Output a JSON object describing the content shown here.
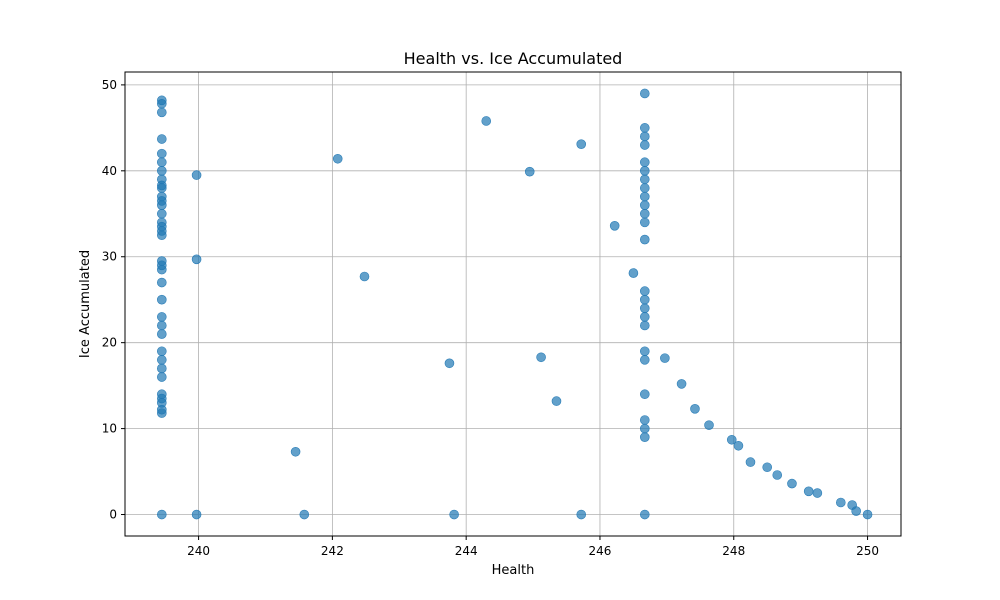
{
  "chart_data": {
    "type": "scatter",
    "title": "Health vs. Ice Accumulated",
    "xlabel": "Health",
    "ylabel": "Ice Accumulated",
    "xlim": [
      238.9,
      250.5
    ],
    "ylim": [
      -2.5,
      51.5
    ],
    "xticks": [
      240,
      242,
      244,
      246,
      248,
      250
    ],
    "yticks": [
      0,
      10,
      20,
      30,
      40,
      50
    ],
    "grid": true,
    "marker_color": "#1f77b4",
    "marker_alpha": 0.7,
    "points": [
      [
        239.45,
        48.2
      ],
      [
        239.45,
        47.8
      ],
      [
        239.45,
        46.8
      ],
      [
        239.45,
        43.7
      ],
      [
        239.45,
        42.0
      ],
      [
        239.45,
        41.0
      ],
      [
        239.45,
        40.0
      ],
      [
        239.45,
        39.0
      ],
      [
        239.45,
        38.3
      ],
      [
        239.45,
        38.0
      ],
      [
        239.45,
        37.0
      ],
      [
        239.45,
        36.5
      ],
      [
        239.45,
        36.0
      ],
      [
        239.45,
        35.0
      ],
      [
        239.45,
        34.0
      ],
      [
        239.45,
        33.5
      ],
      [
        239.45,
        33.0
      ],
      [
        239.45,
        32.5
      ],
      [
        239.45,
        29.5
      ],
      [
        239.45,
        29.0
      ],
      [
        239.45,
        28.5
      ],
      [
        239.45,
        27.0
      ],
      [
        239.45,
        25.0
      ],
      [
        239.45,
        23.0
      ],
      [
        239.45,
        22.0
      ],
      [
        239.45,
        21.0
      ],
      [
        239.45,
        19.0
      ],
      [
        239.45,
        18.0
      ],
      [
        239.45,
        17.0
      ],
      [
        239.45,
        16.0
      ],
      [
        239.45,
        14.0
      ],
      [
        239.45,
        13.5
      ],
      [
        239.45,
        13.0
      ],
      [
        239.45,
        12.2
      ],
      [
        239.45,
        11.8
      ],
      [
        239.45,
        0.0
      ],
      [
        239.97,
        39.5
      ],
      [
        239.97,
        29.7
      ],
      [
        239.97,
        0.0
      ],
      [
        241.45,
        7.3
      ],
      [
        241.58,
        0.0
      ],
      [
        242.08,
        41.4
      ],
      [
        242.48,
        27.7
      ],
      [
        243.75,
        17.6
      ],
      [
        243.82,
        0.0
      ],
      [
        244.3,
        45.8
      ],
      [
        244.95,
        39.9
      ],
      [
        245.12,
        18.3
      ],
      [
        245.35,
        13.2
      ],
      [
        245.72,
        43.1
      ],
      [
        245.72,
        0.0
      ],
      [
        246.22,
        33.6
      ],
      [
        246.5,
        28.1
      ],
      [
        246.67,
        49.0
      ],
      [
        246.67,
        45.0
      ],
      [
        246.67,
        44.0
      ],
      [
        246.67,
        43.0
      ],
      [
        246.67,
        41.0
      ],
      [
        246.67,
        40.0
      ],
      [
        246.67,
        39.0
      ],
      [
        246.67,
        38.0
      ],
      [
        246.67,
        37.0
      ],
      [
        246.67,
        36.0
      ],
      [
        246.67,
        35.0
      ],
      [
        246.67,
        34.0
      ],
      [
        246.67,
        32.0
      ],
      [
        246.67,
        26.0
      ],
      [
        246.67,
        25.0
      ],
      [
        246.67,
        24.0
      ],
      [
        246.67,
        23.0
      ],
      [
        246.67,
        22.0
      ],
      [
        246.67,
        19.0
      ],
      [
        246.67,
        18.0
      ],
      [
        246.67,
        14.0
      ],
      [
        246.67,
        11.0
      ],
      [
        246.67,
        10.0
      ],
      [
        246.67,
        9.0
      ],
      [
        246.67,
        0.0
      ],
      [
        246.97,
        18.2
      ],
      [
        247.22,
        15.2
      ],
      [
        247.42,
        12.3
      ],
      [
        247.63,
        10.4
      ],
      [
        247.97,
        8.7
      ],
      [
        248.07,
        8.0
      ],
      [
        248.25,
        6.1
      ],
      [
        248.5,
        5.5
      ],
      [
        248.65,
        4.6
      ],
      [
        248.87,
        3.6
      ],
      [
        249.12,
        2.7
      ],
      [
        249.25,
        2.5
      ],
      [
        249.6,
        1.4
      ],
      [
        249.77,
        1.1
      ],
      [
        249.83,
        0.4
      ],
      [
        250.0,
        0.0
      ]
    ]
  }
}
